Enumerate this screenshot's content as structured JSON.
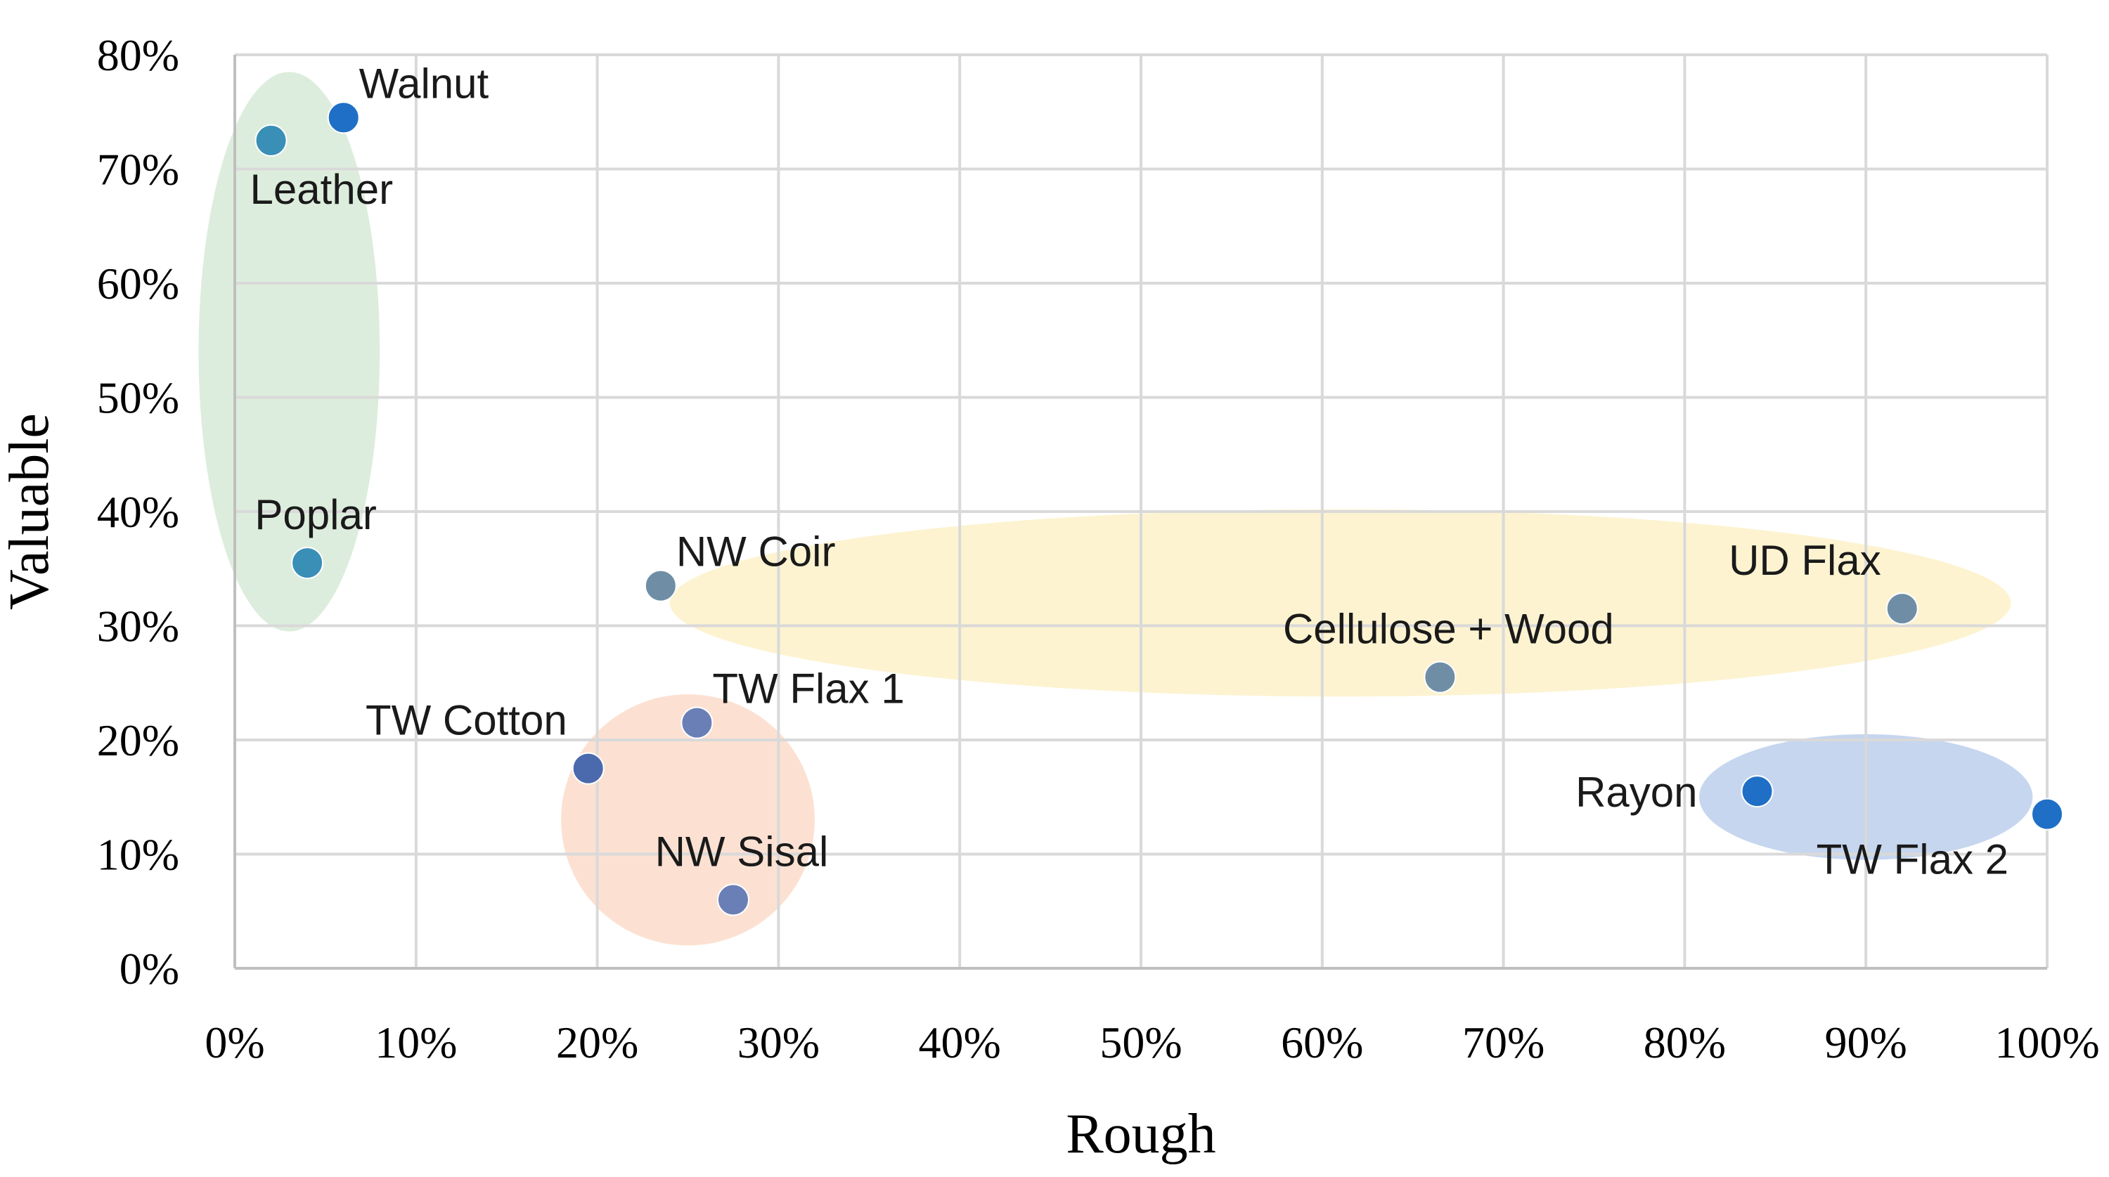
{
  "chart_data": {
    "type": "scatter",
    "title": "",
    "xlabel": "Rough",
    "ylabel": "Valuable",
    "xlim": [
      0,
      100
    ],
    "ylim": [
      0,
      80
    ],
    "x_ticks": [
      "0%",
      "10%",
      "20%",
      "30%",
      "40%",
      "50%",
      "60%",
      "70%",
      "80%",
      "90%",
      "100%"
    ],
    "y_ticks": [
      "0%",
      "10%",
      "20%",
      "30%",
      "40%",
      "50%",
      "60%",
      "70%",
      "80%"
    ],
    "grid": true,
    "points": [
      {
        "label": "Walnut",
        "x": 6,
        "y": 74.5,
        "color": "#1f6fc6",
        "label_pos": "above-right"
      },
      {
        "label": "Leather",
        "x": 2,
        "y": 72.5,
        "color": "#3a8fb7",
        "label_pos": "below-right"
      },
      {
        "label": "Poplar",
        "x": 4,
        "y": 35.5,
        "color": "#3a8fb7",
        "label_pos": "above"
      },
      {
        "label": "NW Coir",
        "x": 23.5,
        "y": 33.5,
        "color": "#6f8ea6",
        "label_pos": "above-right"
      },
      {
        "label": "TW Flax 1",
        "x": 25.5,
        "y": 21.5,
        "color": "#6a7fb5",
        "label_pos": "above-right"
      },
      {
        "label": "TW Cotton",
        "x": 19.5,
        "y": 17.5,
        "color": "#4a6aad",
        "label_pos": "above-left"
      },
      {
        "label": "NW Sisal",
        "x": 27.5,
        "y": 6,
        "color": "#6a7fb5",
        "label_pos": "above"
      },
      {
        "label": "Cellulose + Wood",
        "x": 66.5,
        "y": 25.5,
        "color": "#6f8ea6",
        "label_pos": "above"
      },
      {
        "label": "UD Flax",
        "x": 92,
        "y": 31.5,
        "color": "#6f8ea6",
        "label_pos": "above-left"
      },
      {
        "label": "Rayon",
        "x": 84,
        "y": 15.5,
        "color": "#1f6fc6",
        "label_pos": "left"
      },
      {
        "label": "TW Flax 2",
        "x": 100,
        "y": 13.5,
        "color": "#1f6fc6",
        "label_pos": "below-left"
      }
    ],
    "groups": [
      {
        "cx": 3,
        "cy": 54,
        "rx": 5,
        "ry": 24.5,
        "color": "#d5e8d4"
      },
      {
        "cx": 25,
        "cy": 13,
        "rx": 7,
        "ry": 11,
        "color": "#fbd9c8"
      },
      {
        "cx": 61,
        "cy": 32,
        "rx": 37,
        "ry": 8.2,
        "color": "#fdf0c4"
      },
      {
        "cx": 90,
        "cy": 15,
        "rx": 9.2,
        "ry": 5.5,
        "color": "#b8cceb"
      }
    ]
  }
}
